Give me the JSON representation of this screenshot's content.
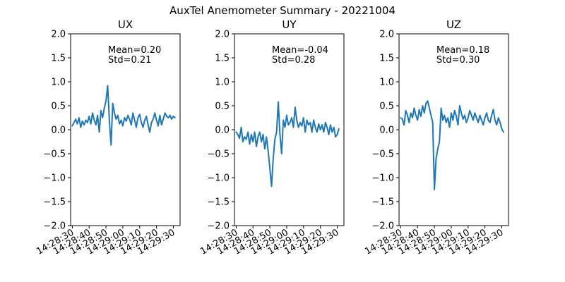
{
  "figure": {
    "title": "AuxTel Anemometer Summary - 20221004"
  },
  "chart_data": [
    {
      "type": "line",
      "title": "UX",
      "xlabel": "",
      "ylabel": "",
      "ylim": [
        -2.0,
        2.0
      ],
      "yticks": [
        "−2.0",
        "−1.5",
        "−1.0",
        "−0.5",
        "0.0",
        "0.5",
        "1.0",
        "1.5",
        "2.0"
      ],
      "xlim": [
        "14:28:29",
        "14:29:34"
      ],
      "xticks": [
        "14:28:30",
        "14:28:40",
        "14:28:50",
        "14:29:00",
        "14:29:10",
        "14:29:20",
        "14:29:30"
      ],
      "annotation": {
        "mean": "Mean=0.20",
        "std": "Std=0.21"
      },
      "x": [
        "14:28:30",
        "14:28:31",
        "14:28:32",
        "14:28:33",
        "14:28:34",
        "14:28:35",
        "14:28:36",
        "14:28:37",
        "14:28:38",
        "14:28:39",
        "14:28:40",
        "14:28:41",
        "14:28:42",
        "14:28:43",
        "14:28:44",
        "14:28:45",
        "14:28:46",
        "14:28:47",
        "14:28:48",
        "14:28:49",
        "14:28:50",
        "14:28:51",
        "14:28:52",
        "14:28:53",
        "14:28:54",
        "14:28:55",
        "14:28:56",
        "14:28:57",
        "14:28:58",
        "14:28:59",
        "14:29:00",
        "14:29:01",
        "14:29:02",
        "14:29:03",
        "14:29:04",
        "14:29:05",
        "14:29:06",
        "14:29:07",
        "14:29:08",
        "14:29:09",
        "14:29:10",
        "14:29:11",
        "14:29:12",
        "14:29:13",
        "14:29:14",
        "14:29:15",
        "14:29:16",
        "14:29:17",
        "14:29:18",
        "14:29:19",
        "14:29:20",
        "14:29:21",
        "14:29:22",
        "14:29:23",
        "14:29:24",
        "14:29:25",
        "14:29:26",
        "14:29:27",
        "14:29:28",
        "14:29:29",
        "14:29:30",
        "14:29:31"
      ],
      "series": [
        {
          "values": [
            0.08,
            0.15,
            0.22,
            0.12,
            0.25,
            0.05,
            0.18,
            0.1,
            0.2,
            0.15,
            0.28,
            0.12,
            0.35,
            0.2,
            0.1,
            0.3,
            -0.05,
            0.4,
            0.25,
            0.45,
            0.6,
            0.92,
            0.2,
            -0.32,
            0.55,
            0.35,
            0.22,
            0.3,
            0.12,
            0.2,
            0.08,
            0.25,
            0.18,
            0.3,
            0.22,
            0.1,
            0.35,
            0.2,
            0.05,
            0.25,
            0.32,
            0.15,
            0.05,
            0.2,
            0.28,
            0.1,
            -0.05,
            0.15,
            0.22,
            0.35,
            0.2,
            0.08,
            0.3,
            0.1,
            0.22,
            0.35,
            0.28,
            0.25,
            0.3,
            0.22,
            0.28,
            0.25
          ]
        }
      ]
    },
    {
      "type": "line",
      "title": "UY",
      "xlabel": "",
      "ylabel": "",
      "ylim": [
        -2.0,
        2.0
      ],
      "yticks": [
        "−2.0",
        "−1.5",
        "−1.0",
        "−0.5",
        "0.0",
        "0.5",
        "1.0",
        "1.5",
        "2.0"
      ],
      "xlim": [
        "14:28:29",
        "14:29:34"
      ],
      "xticks": [
        "14:28:30",
        "14:28:40",
        "14:28:50",
        "14:29:00",
        "14:29:10",
        "14:29:20",
        "14:29:30"
      ],
      "annotation": {
        "mean": "Mean=-0.04",
        "std": "Std=0.28"
      },
      "x": [
        "14:28:30",
        "14:28:31",
        "14:28:32",
        "14:28:33",
        "14:28:34",
        "14:28:35",
        "14:28:36",
        "14:28:37",
        "14:28:38",
        "14:28:39",
        "14:28:40",
        "14:28:41",
        "14:28:42",
        "14:28:43",
        "14:28:44",
        "14:28:45",
        "14:28:46",
        "14:28:47",
        "14:28:48",
        "14:28:49",
        "14:28:50",
        "14:28:51",
        "14:28:52",
        "14:28:53",
        "14:28:54",
        "14:28:55",
        "14:28:56",
        "14:28:57",
        "14:28:58",
        "14:28:59",
        "14:29:00",
        "14:29:01",
        "14:29:02",
        "14:29:03",
        "14:29:04",
        "14:29:05",
        "14:29:06",
        "14:29:07",
        "14:29:08",
        "14:29:09",
        "14:29:10",
        "14:29:11",
        "14:29:12",
        "14:29:13",
        "14:29:14",
        "14:29:15",
        "14:29:16",
        "14:29:17",
        "14:29:18",
        "14:29:19",
        "14:29:20",
        "14:29:21",
        "14:29:22",
        "14:29:23",
        "14:29:24",
        "14:29:25",
        "14:29:26",
        "14:29:27",
        "14:29:28",
        "14:29:29",
        "14:29:30",
        "14:29:31"
      ],
      "series": [
        {
          "values": [
            -0.05,
            -0.1,
            -0.18,
            0.05,
            -0.25,
            -0.15,
            -0.2,
            -0.05,
            -0.3,
            -0.1,
            -0.25,
            -0.05,
            -0.35,
            -0.15,
            -0.05,
            -0.25,
            -0.1,
            -0.4,
            -0.15,
            -0.45,
            -0.8,
            -1.18,
            -0.6,
            -0.2,
            -0.05,
            0.58,
            -0.1,
            -0.5,
            0.2,
            0.05,
            0.3,
            0.1,
            0.15,
            0.25,
            0.05,
            0.47,
            0.2,
            0.05,
            0.15,
            0.08,
            0.25,
            -0.05,
            0.2,
            0.1,
            0.15,
            -0.05,
            0.2,
            0.05,
            -0.05,
            0.12,
            0.0,
            0.1,
            -0.05,
            0.15,
            0.05,
            -0.1,
            0.1,
            -0.05,
            0.05,
            -0.15,
            -0.1,
            0.02
          ]
        }
      ]
    },
    {
      "type": "line",
      "title": "UZ",
      "xlabel": "",
      "ylabel": "",
      "ylim": [
        -2.0,
        2.0
      ],
      "yticks": [
        "−2.0",
        "−1.5",
        "−1.0",
        "−0.5",
        "0.0",
        "0.5",
        "1.0",
        "1.5",
        "2.0"
      ],
      "xlim": [
        "14:28:29",
        "14:29:34"
      ],
      "xticks": [
        "14:28:30",
        "14:28:40",
        "14:28:50",
        "14:29:00",
        "14:29:10",
        "14:29:20",
        "14:29:30"
      ],
      "annotation": {
        "mean": "Mean=0.18",
        "std": "Std=0.30"
      },
      "x": [
        "14:28:30",
        "14:28:31",
        "14:28:32",
        "14:28:33",
        "14:28:34",
        "14:28:35",
        "14:28:36",
        "14:28:37",
        "14:28:38",
        "14:28:39",
        "14:28:40",
        "14:28:41",
        "14:28:42",
        "14:28:43",
        "14:28:44",
        "14:28:45",
        "14:28:46",
        "14:28:47",
        "14:28:48",
        "14:28:49",
        "14:28:50",
        "14:28:51",
        "14:28:52",
        "14:28:53",
        "14:28:54",
        "14:28:55",
        "14:28:56",
        "14:28:57",
        "14:28:58",
        "14:28:59",
        "14:29:00",
        "14:29:01",
        "14:29:02",
        "14:29:03",
        "14:29:04",
        "14:29:05",
        "14:29:06",
        "14:29:07",
        "14:29:08",
        "14:29:09",
        "14:29:10",
        "14:29:11",
        "14:29:12",
        "14:29:13",
        "14:29:14",
        "14:29:15",
        "14:29:16",
        "14:29:17",
        "14:29:18",
        "14:29:19",
        "14:29:20",
        "14:29:21",
        "14:29:22",
        "14:29:23",
        "14:29:24",
        "14:29:25",
        "14:29:26",
        "14:29:27",
        "14:29:28",
        "14:29:29",
        "14:29:30",
        "14:29:31"
      ],
      "series": [
        {
          "values": [
            0.25,
            0.22,
            0.1,
            0.4,
            0.3,
            0.15,
            0.35,
            0.25,
            0.45,
            0.3,
            0.2,
            0.42,
            0.28,
            0.5,
            0.35,
            0.55,
            0.6,
            0.45,
            0.3,
            0.15,
            -1.25,
            -0.6,
            -0.4,
            -0.25,
            0.45,
            0.2,
            0.3,
            0.15,
            0.25,
            0.05,
            0.35,
            0.2,
            0.4,
            0.28,
            0.1,
            0.5,
            0.35,
            0.22,
            0.3,
            0.15,
            0.25,
            0.4,
            0.3,
            0.2,
            0.35,
            0.25,
            0.15,
            0.3,
            0.2,
            0.1,
            0.25,
            0.35,
            0.2,
            0.15,
            0.3,
            0.42,
            0.2,
            0.1,
            0.25,
            0.15,
            0.02,
            -0.05
          ]
        }
      ]
    }
  ]
}
